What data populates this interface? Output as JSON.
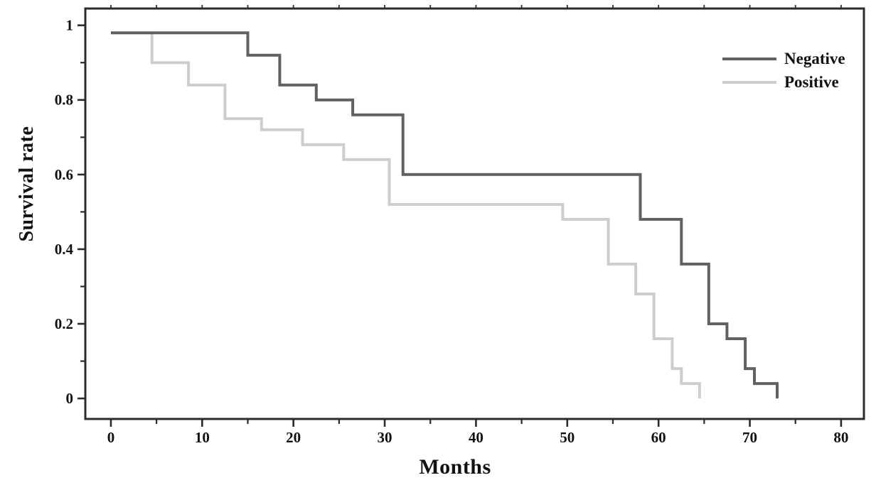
{
  "figure": {
    "background": "#ffffff",
    "frame_color": "#2b2b2b",
    "text_color": "#111111"
  },
  "chart_data": {
    "type": "line",
    "subtype": "kaplan-meier-step-survival",
    "title": "",
    "xlabel": "Months",
    "ylabel": "Survival rate",
    "xlim": [
      -2.8,
      82.5
    ],
    "ylim": [
      -0.055,
      1.045
    ],
    "grid": false,
    "legend_position": "top-right",
    "x_major_ticks": [
      0,
      10,
      20,
      30,
      40,
      50,
      60,
      70,
      80
    ],
    "x_major_tick_labels": [
      "0",
      "10",
      "20",
      "30",
      "40",
      "50",
      "60",
      "70",
      "80"
    ],
    "x_minor_ticks": [
      5,
      15,
      25,
      35,
      45,
      55,
      65,
      75
    ],
    "top_ticks": [
      0,
      5,
      10,
      15,
      20,
      25,
      30,
      35,
      40,
      45,
      50,
      55,
      60,
      65,
      70,
      75,
      80
    ],
    "y_major_ticks": [
      0,
      0.2,
      0.4,
      0.6,
      0.8,
      1
    ],
    "y_major_tick_labels": [
      "0",
      "0.2",
      "0.4",
      "0.6",
      "0.8",
      "1"
    ],
    "y_minor_ticks": [
      0.1,
      0.3,
      0.5,
      0.7,
      0.9
    ],
    "series": [
      {
        "name": "Positive",
        "color": "#cdcdcd",
        "line_width": 4,
        "start": [
          0,
          0.98
        ],
        "steps": [
          [
            4.5,
            0.9
          ],
          [
            8.5,
            0.84
          ],
          [
            12.5,
            0.75
          ],
          [
            16.5,
            0.72
          ],
          [
            21,
            0.68
          ],
          [
            25.5,
            0.64
          ],
          [
            30.5,
            0.52
          ],
          [
            49.5,
            0.48
          ],
          [
            54.5,
            0.36
          ],
          [
            57.5,
            0.28
          ],
          [
            59.5,
            0.16
          ],
          [
            61.5,
            0.08
          ],
          [
            62.5,
            0.04
          ],
          [
            64.5,
            0.0
          ]
        ]
      },
      {
        "name": "Negative",
        "color": "#616161",
        "line_width": 4,
        "start": [
          0,
          0.98
        ],
        "steps": [
          [
            15,
            0.92
          ],
          [
            18.5,
            0.84
          ],
          [
            22.5,
            0.8
          ],
          [
            26.5,
            0.76
          ],
          [
            32,
            0.6
          ],
          [
            58,
            0.48
          ],
          [
            62.5,
            0.36
          ],
          [
            65.5,
            0.2
          ],
          [
            67.5,
            0.16
          ],
          [
            69.5,
            0.08
          ],
          [
            70.5,
            0.04
          ],
          [
            73,
            0.0
          ]
        ]
      }
    ]
  },
  "legend": {
    "entries": [
      {
        "label": "Negative",
        "color": "#616161"
      },
      {
        "label": "Positive",
        "color": "#cdcdcd"
      }
    ]
  }
}
